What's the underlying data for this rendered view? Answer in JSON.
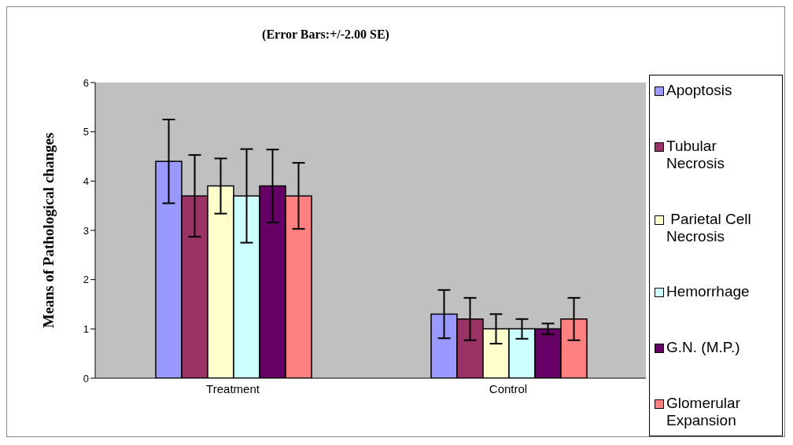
{
  "chart_data": {
    "type": "bar",
    "title": "(Error Bars:+/-2.00 SE)",
    "ylabel": "Means of Pathological changes",
    "categories": [
      "Treatment",
      "Control"
    ],
    "series": [
      {
        "name": "Apoptosis",
        "color": "#9999ff",
        "values": [
          4.4,
          1.3
        ],
        "errors": [
          0.85,
          0.49
        ]
      },
      {
        "name": "Tubular Necrosis",
        "color": "#993366",
        "values": [
          3.7,
          1.2
        ],
        "errors": [
          0.83,
          0.43
        ]
      },
      {
        "name": " Parietal Cell Necrosis",
        "color": "#ffffcc",
        "values": [
          3.9,
          1.0
        ],
        "errors": [
          0.56,
          0.3
        ]
      },
      {
        "name": "Hemorrhage",
        "color": "#ccffff",
        "values": [
          3.7,
          1.0
        ],
        "errors": [
          0.95,
          0.2
        ]
      },
      {
        "name": "G.N. (M.P.)",
        "color": "#660066",
        "values": [
          3.9,
          1.0
        ],
        "errors": [
          0.74,
          0.11
        ]
      },
      {
        "name": "Glomerular Expansion",
        "color": "#ff8080",
        "values": [
          3.7,
          1.2
        ],
        "errors": [
          0.67,
          0.43
        ]
      }
    ],
    "ylim": [
      0,
      6
    ],
    "yticks": [
      0,
      1,
      2,
      3,
      4,
      5,
      6
    ],
    "legend": "right"
  }
}
